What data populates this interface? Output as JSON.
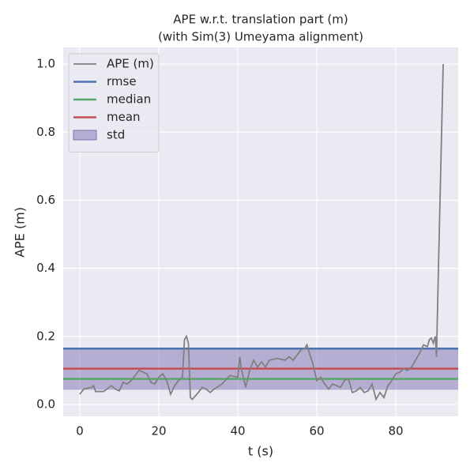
{
  "chart_data": {
    "type": "line",
    "title": "APE w.r.t. translation part (m)",
    "subtitle": "(with Sim(3) Umeyama alignment)",
    "x_label": "t (s)",
    "y_label": "APE (m)",
    "xlim": [
      -4.2,
      95.8
    ],
    "ylim": [
      -0.035,
      1.049
    ],
    "xticks": [
      0,
      20,
      40,
      60,
      80
    ],
    "yticks": [
      {
        "value": 0,
        "label": "0.0"
      },
      {
        "value": 0.2,
        "label": "0.2"
      },
      {
        "value": 0.4,
        "label": "0.4"
      },
      {
        "value": 0.6,
        "label": "0.6"
      },
      {
        "value": 0.8,
        "label": "0.8"
      },
      {
        "value": 1,
        "label": "1.0"
      }
    ],
    "grid": true,
    "legend": "upper left",
    "x": [
      0,
      1,
      2,
      3,
      3.5,
      4,
      6,
      8,
      9,
      10,
      11,
      12,
      13,
      14,
      15,
      16,
      17,
      18,
      19,
      20,
      21,
      22,
      23,
      24,
      25,
      26,
      26.5,
      27,
      27.5,
      28,
      28.5,
      30,
      31,
      32,
      33,
      34,
      36,
      38,
      40,
      40.5,
      41,
      42,
      43,
      44,
      45,
      46,
      47,
      48,
      50,
      52,
      53,
      54,
      56,
      57,
      57.5,
      58,
      59,
      60,
      61,
      62,
      63,
      64,
      66,
      67,
      68,
      69,
      70,
      71,
      72,
      73,
      74,
      75,
      76,
      77,
      78,
      79,
      80,
      81,
      82,
      83,
      84,
      85,
      86,
      87,
      88,
      88.5,
      89,
      89.5,
      90,
      90.3,
      90.8,
      91.5,
      92
    ],
    "series": [
      {
        "name": "APE (m)",
        "color": "#808080",
        "values": [
          0.03,
          0.045,
          0.048,
          0.05,
          0.055,
          0.038,
          0.038,
          0.055,
          0.045,
          0.04,
          0.065,
          0.06,
          0.07,
          0.085,
          0.1,
          0.095,
          0.09,
          0.065,
          0.06,
          0.08,
          0.09,
          0.07,
          0.03,
          0.055,
          0.07,
          0.08,
          0.19,
          0.2,
          0.18,
          0.02,
          0.015,
          0.035,
          0.05,
          0.045,
          0.035,
          0.045,
          0.06,
          0.085,
          0.08,
          0.14,
          0.1,
          0.05,
          0.1,
          0.13,
          0.11,
          0.125,
          0.11,
          0.13,
          0.135,
          0.13,
          0.14,
          0.13,
          0.16,
          0.165,
          0.175,
          0.155,
          0.12,
          0.07,
          0.08,
          0.06,
          0.045,
          0.06,
          0.05,
          0.07,
          0.075,
          0.035,
          0.04,
          0.05,
          0.035,
          0.04,
          0.06,
          0.015,
          0.035,
          0.02,
          0.055,
          0.07,
          0.09,
          0.095,
          0.105,
          0.1,
          0.11,
          0.13,
          0.15,
          0.175,
          0.17,
          0.19,
          0.195,
          0.18,
          0.2,
          0.14,
          0.4,
          0.75,
          1.0
        ]
      }
    ],
    "stats": [
      {
        "name": "rmse",
        "color": "#4c72b0",
        "value": 0.164
      },
      {
        "name": "median",
        "color": "#55a868",
        "value": 0.075
      },
      {
        "name": "mean",
        "color": "#c44e52",
        "value": 0.105
      }
    ],
    "std": {
      "name": "std",
      "color": "#8172b2",
      "value": 0.062
    }
  }
}
